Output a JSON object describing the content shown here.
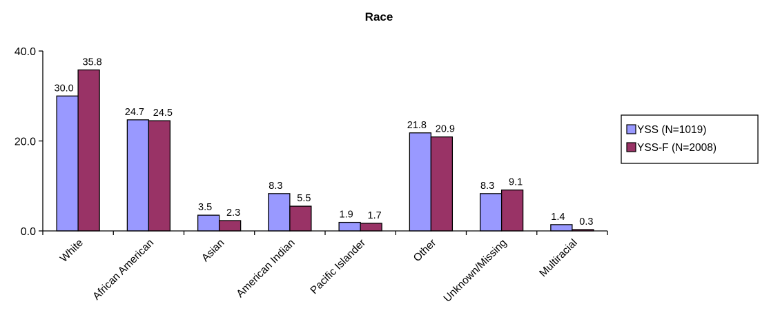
{
  "chart_data": {
    "type": "bar",
    "title": "Race",
    "xlabel": "",
    "ylabel": "",
    "ylim": [
      0,
      40
    ],
    "yticks": [
      "0.0",
      "20.0",
      "40.0"
    ],
    "categories": [
      "White",
      "African American",
      "Asian",
      "American Indian",
      "Pacific Islander",
      "Other",
      "Unknown/Missing",
      "Multiracial"
    ],
    "series": [
      {
        "name": "YSS (N=1019)",
        "color": "#9999ff",
        "values": [
          30.0,
          24.7,
          3.5,
          8.3,
          1.9,
          21.8,
          8.3,
          1.4
        ],
        "labels": [
          "30.0",
          "24.7",
          "3.5",
          "8.3",
          "1.9",
          "21.8",
          "8.3",
          "1.4"
        ]
      },
      {
        "name": "YSS-F (N=2008)",
        "color": "#993366",
        "values": [
          35.8,
          24.5,
          2.3,
          5.5,
          1.7,
          20.9,
          9.1,
          0.3
        ],
        "labels": [
          "35.8",
          "24.5",
          "2.3",
          "5.5",
          "1.7",
          "20.9",
          "9.1",
          "0.3"
        ]
      }
    ],
    "grid": false,
    "legend": "right"
  }
}
